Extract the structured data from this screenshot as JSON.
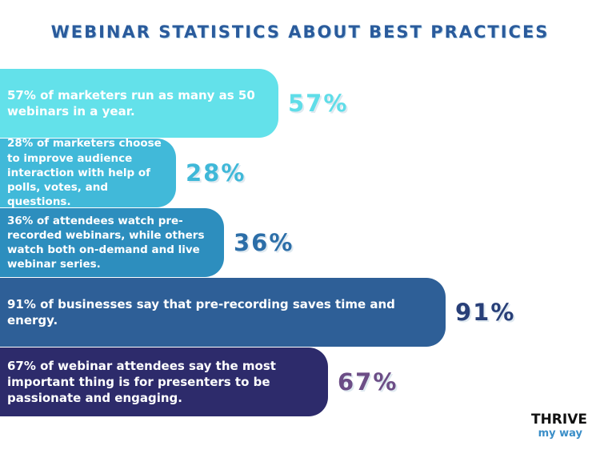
{
  "title": "WEBINAR STATISTICS ABOUT BEST PRACTICES",
  "items": [
    {
      "text": "57% of marketers run as many as 50 webinars in a year.",
      "stat": "57%"
    },
    {
      "text": "28% of marketers choose to improve audience interaction with help of polls, votes, and questions.",
      "stat": "28%"
    },
    {
      "text": "36% of attendees watch pre-recorded webinars, while others watch both on-demand and live webinar series.",
      "stat": "36%"
    },
    {
      "text": "91% of businesses say that pre-recording saves time and energy.",
      "stat": "91%"
    },
    {
      "text": "67% of webinar attendees say the most important thing is for presenters to be passionate and engaging.",
      "stat": "67%"
    }
  ],
  "logo": {
    "line1": "THRIVE",
    "line2": "my way"
  }
}
